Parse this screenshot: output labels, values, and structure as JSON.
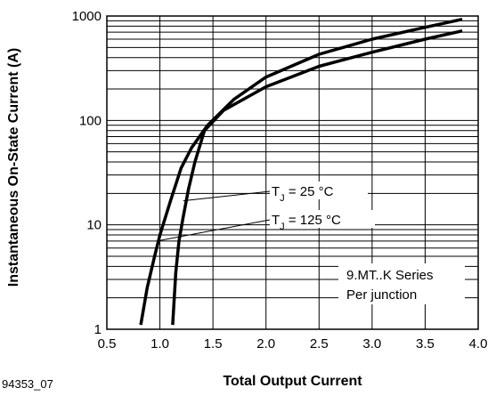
{
  "figure_id": "94353_07",
  "chart_data": {
    "type": "line",
    "xlabel": "Total Output Current",
    "ylabel": "Instantaneous On-State Current (A)",
    "xlim": [
      0.5,
      4.0
    ],
    "ylim": [
      1,
      1000
    ],
    "yscale": "log",
    "grid": "horizontal log gridlines (major and minor), vertical lines at major x ticks",
    "x_ticks": [
      "0.5",
      "1.0",
      "1.5",
      "2.0",
      "2.5",
      "3.0",
      "3.5",
      "4.0"
    ],
    "y_ticks": [
      "1",
      "10",
      "100",
      "1000"
    ],
    "series": [
      {
        "name": "TJ = 25 °C",
        "x": [
          0.82,
          0.88,
          0.95,
          1.0,
          1.1,
          1.2,
          1.3,
          1.45,
          1.7,
          2.0,
          2.5,
          3.0,
          3.5,
          3.85
        ],
        "y": [
          1.1,
          2.5,
          5.0,
          8.0,
          17,
          35,
          55,
          90,
          160,
          260,
          430,
          600,
          780,
          930
        ]
      },
      {
        "name": "TJ = 125 °C",
        "x": [
          1.12,
          1.15,
          1.18,
          1.22,
          1.27,
          1.33,
          1.42,
          1.6,
          2.0,
          2.5,
          3.0,
          3.5,
          3.85
        ],
        "y": [
          1.1,
          3.5,
          7.0,
          12,
          22,
          40,
          80,
          125,
          210,
          330,
          450,
          600,
          720
        ]
      }
    ],
    "annotations": [
      {
        "label_main": "T",
        "label_sub": "J",
        "label_rest": " = 25 °C",
        "series": 0
      },
      {
        "label_main": "T",
        "label_sub": "J",
        "label_rest": " = 125 °C",
        "series": 1
      }
    ],
    "legend_box": {
      "lines": [
        "9.MT..K Series",
        "Per junction"
      ],
      "placement": "bottom-right"
    }
  }
}
